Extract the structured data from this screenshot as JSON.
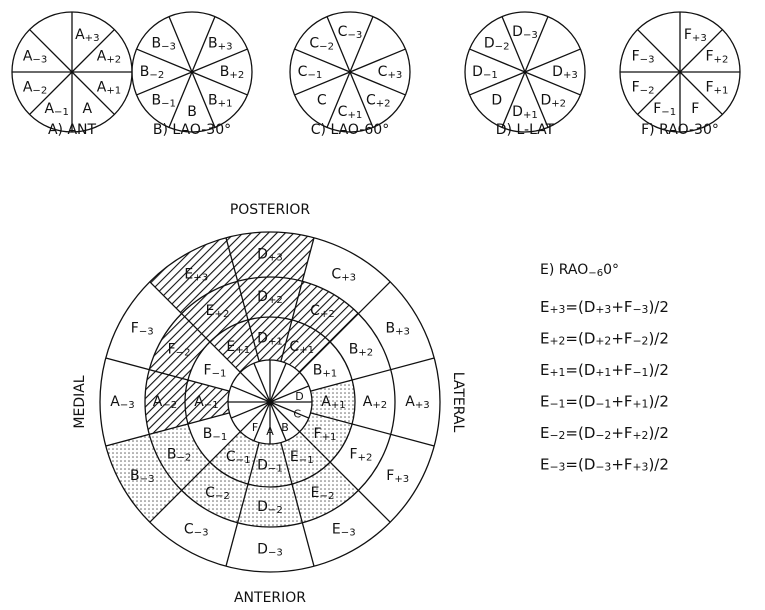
{
  "views": [
    {
      "caption": "A) ANT",
      "labels": [
        "A+3",
        "A+2",
        "A+1",
        "A",
        "A−1",
        "A−2",
        "A−3"
      ]
    },
    {
      "caption": "B) LAO-30°",
      "labels": [
        "B+3",
        "B+2",
        "B+1",
        "B",
        "B−1",
        "B−2",
        "B−3"
      ]
    },
    {
      "caption": "C) LAO-60°",
      "labels": [
        "C+3",
        "C+2",
        "C+1",
        "C",
        "C−1",
        "C−2",
        "C−3"
      ]
    },
    {
      "caption": "D) L-LAT",
      "labels": [
        "D+3",
        "D+2",
        "D+1",
        "D",
        "D−1",
        "D−2",
        "D−3"
      ]
    },
    {
      "caption": "F) RAO-30°",
      "labels": [
        "F+3",
        "F+2",
        "F+1",
        "F",
        "F−1",
        "F−2",
        "F−3"
      ]
    }
  ],
  "bullseye": {
    "top": "POSTERIOR",
    "bottom": "ANTERIOR",
    "left": "MEDIAL",
    "right": "LATERAL",
    "rings": [
      [
        "D",
        "C",
        "B",
        "A",
        "F"
      ],
      [
        "D+1",
        "C+1",
        "B+1",
        "A+1",
        "F+1",
        "E−1",
        "D−1",
        "C−1",
        "B−1",
        "A−1",
        "F−1",
        "E+1"
      ],
      [
        "D+2",
        "C+2",
        "B+2",
        "A+2",
        "F+2",
        "E−2",
        "D−2",
        "C−2",
        "B−2",
        "A−2",
        "F−2",
        "E+2"
      ],
      [
        "D+3",
        "C+3",
        "B+3",
        "A+3",
        "F+3",
        "E−3",
        "D−3",
        "C−3",
        "B−3",
        "A−3",
        "F−3",
        "E+3"
      ]
    ]
  },
  "equations": {
    "title": "E) RAO−60°",
    "lines": [
      "E+3=(D+3+F−3)/2",
      "E+2=(D+2+F−2)/2",
      "E+1=(D+1+F−1)/2",
      "E−1=(D−1+F+1)/2",
      "E−2=(D−2+F+2)/2",
      "E−3=(D−3+F+3)/2"
    ]
  }
}
